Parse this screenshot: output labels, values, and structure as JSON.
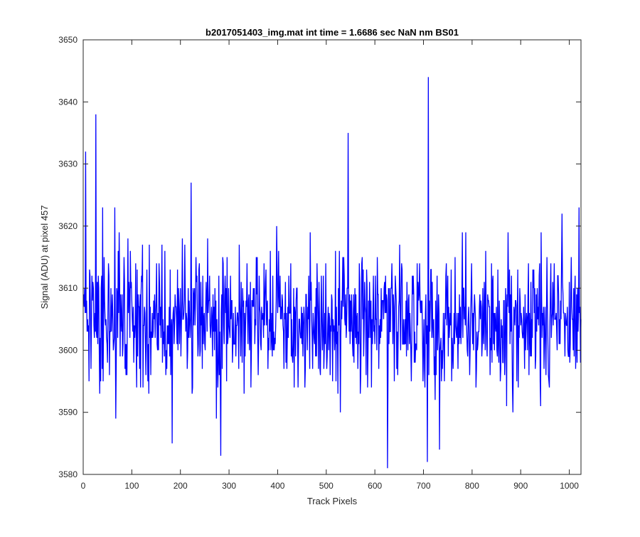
{
  "chart_data": {
    "type": "line",
    "title": "b2017051403_img.mat int time = 1.6686 sec  NaN nm BS01",
    "xlabel": "Track Pixels",
    "ylabel": "Signal (ADU) at pixel 457",
    "xlim": [
      0,
      1024
    ],
    "ylim": [
      3580,
      3650
    ],
    "xticks": [
      0,
      100,
      200,
      300,
      400,
      500,
      600,
      700,
      800,
      900,
      1000
    ],
    "yticks": [
      3580,
      3590,
      3600,
      3610,
      3620,
      3630,
      3640,
      3650
    ],
    "grid": false,
    "legend": "none",
    "series": [
      {
        "color": "#0000ff",
        "x_start": 1,
        "x_step": 1,
        "baseline_mean": 3605,
        "baseline_std": 5.5,
        "peaks": [
          {
            "x": 5,
            "y": 3632
          },
          {
            "x": 26,
            "y": 3638
          },
          {
            "x": 40,
            "y": 3623
          },
          {
            "x": 65,
            "y": 3623
          },
          {
            "x": 183,
            "y": 3585
          },
          {
            "x": 222,
            "y": 3627
          },
          {
            "x": 283,
            "y": 3583
          },
          {
            "x": 398,
            "y": 3620
          },
          {
            "x": 545,
            "y": 3635
          },
          {
            "x": 626,
            "y": 3581
          },
          {
            "x": 708,
            "y": 3582
          },
          {
            "x": 710,
            "y": 3644
          },
          {
            "x": 733,
            "y": 3584
          },
          {
            "x": 985,
            "y": 3622
          },
          {
            "x": 1020,
            "y": 3623
          }
        ]
      }
    ]
  }
}
